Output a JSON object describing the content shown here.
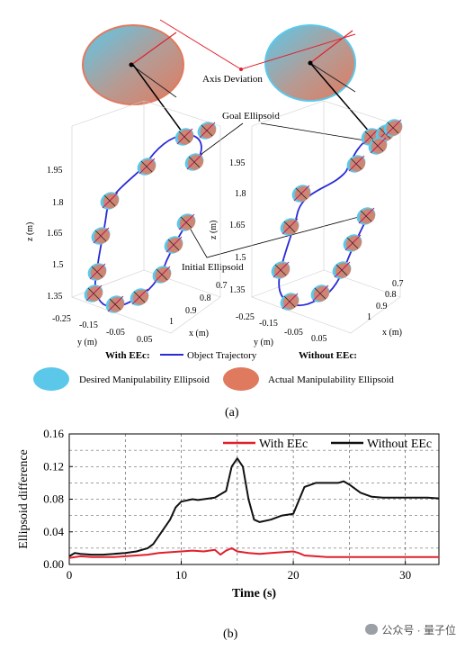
{
  "panel_a": {
    "caption": "(a)",
    "callouts": {
      "axis_deviation": "Axis Deviation",
      "goal_ellipsoid": "Goal Ellipsoid",
      "initial_ellipsoid": "Initial Ellipsoid"
    },
    "axes": {
      "z_label": "z (m)",
      "y_label": "y (m)",
      "x_label": "x (m)",
      "z_ticks": [
        "1.95",
        "1.8",
        "1.65",
        "1.5",
        "1.35"
      ],
      "y_ticks": [
        "-0.25",
        "-0.15",
        "-0.05",
        "0.05"
      ],
      "x_ticks": [
        "1",
        "0.9",
        "0.8",
        "0.7"
      ]
    },
    "left_plot_label": "With EEc:",
    "right_plot_label": "Without EEc:",
    "trajectory_legend": "Object Trajectory",
    "legend": {
      "desired": "Desired Manipulability Ellipsoid",
      "actual": "Actual Manipulability Ellipsoid"
    },
    "colors": {
      "desired": "#5bc8ea",
      "actual": "#e07a5f",
      "trajectory": "#2a2ad6",
      "axis_red": "#e0202a"
    }
  },
  "panel_b": {
    "caption": "(b)",
    "chart_data": {
      "type": "line",
      "xlabel": "Time (s)",
      "ylabel": "Ellipsoid difference",
      "xlim": [
        0,
        33
      ],
      "ylim": [
        0,
        0.16
      ],
      "x_ticks": [
        "0",
        "10",
        "20",
        "30"
      ],
      "y_ticks": [
        "0.00",
        "0.04",
        "0.08",
        "0.12",
        "0.16"
      ],
      "grid": true,
      "legend_position": "top-right",
      "series": [
        {
          "name": "With EEc",
          "color": "#e0202a",
          "x": [
            0,
            1,
            2,
            3,
            4,
            5,
            6,
            7,
            8,
            9,
            10,
            11,
            12,
            13,
            13.5,
            14,
            14.5,
            15,
            16,
            17,
            18,
            19,
            20,
            20.5,
            21,
            22,
            23,
            24,
            25,
            26,
            27,
            28,
            29,
            30,
            31,
            32,
            33
          ],
          "y": [
            0.008,
            0.01,
            0.009,
            0.009,
            0.009,
            0.01,
            0.011,
            0.012,
            0.014,
            0.015,
            0.016,
            0.017,
            0.016,
            0.018,
            0.012,
            0.017,
            0.02,
            0.016,
            0.014,
            0.013,
            0.014,
            0.015,
            0.016,
            0.014,
            0.011,
            0.01,
            0.009,
            0.009,
            0.009,
            0.009,
            0.009,
            0.009,
            0.009,
            0.009,
            0.009,
            0.009,
            0.009
          ]
        },
        {
          "name": "Without EEc",
          "color": "#111111",
          "x": [
            0,
            0.5,
            1,
            2,
            3,
            4,
            5,
            6,
            7,
            7.5,
            8,
            9,
            9.5,
            10,
            11,
            11.5,
            12,
            13,
            14,
            14.5,
            15,
            15.5,
            16,
            16.5,
            17,
            18,
            19,
            20,
            21,
            22,
            23,
            24,
            24.5,
            25,
            26,
            27,
            28,
            29,
            30,
            31,
            32,
            33
          ],
          "y": [
            0.01,
            0.014,
            0.013,
            0.012,
            0.012,
            0.013,
            0.014,
            0.016,
            0.02,
            0.025,
            0.035,
            0.055,
            0.07,
            0.077,
            0.08,
            0.079,
            0.08,
            0.082,
            0.09,
            0.12,
            0.13,
            0.12,
            0.08,
            0.055,
            0.052,
            0.055,
            0.06,
            0.062,
            0.095,
            0.1,
            0.1,
            0.1,
            0.102,
            0.098,
            0.088,
            0.083,
            0.082,
            0.082,
            0.082,
            0.082,
            0.082,
            0.081
          ]
        }
      ]
    }
  },
  "watermark": "公众号 · 量子位"
}
